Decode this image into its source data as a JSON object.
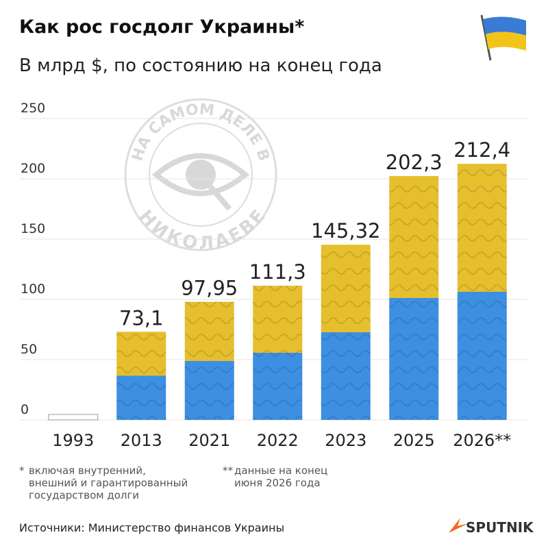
{
  "chart_data": {
    "type": "bar",
    "title": "Как рос госдолг Украины*",
    "subtitle": "В млрд $, по состоянию на конец года",
    "categories": [
      "1993",
      "2013",
      "2021",
      "2022",
      "2023",
      "2025",
      "2026**"
    ],
    "values": [
      4.5,
      73.1,
      97.95,
      111.3,
      145.32,
      202.3,
      212.4
    ],
    "value_labels": [
      null,
      "73,1",
      "97,95",
      "111,3",
      "145,32",
      "202,3",
      "212,4"
    ],
    "ylim": [
      0,
      250
    ],
    "yticks": [
      0,
      50,
      100,
      150,
      200,
      250
    ],
    "grid": true,
    "colors": {
      "top": "#e6bf2e",
      "bottom": "#3d8fe2"
    },
    "footnotes": [
      {
        "mark": "*",
        "lines": [
          "включая внутренний,",
          "внешний и гарантированный",
          "государством долги"
        ]
      },
      {
        "mark": "**",
        "lines": [
          "данные на конец",
          "июня 2026 года"
        ]
      }
    ],
    "source": "Источники: Министерство финансов Украины",
    "logo": "SPUTNIK",
    "watermark": [
      "НА САМОМ ДЕЛЕ В",
      "НИКОЛАЕВЕ"
    ]
  }
}
